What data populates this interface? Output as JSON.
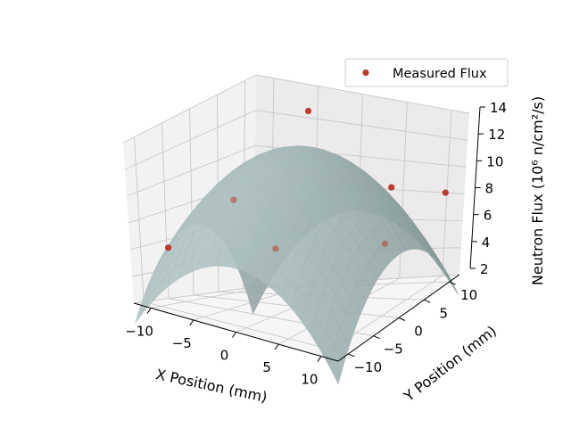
{
  "chart_data": {
    "type": "scatter",
    "title": "",
    "xlabel": "X Position (mm)",
    "ylabel": "Y Position (mm)",
    "zlabel": "Neutron Flux (10⁶ n/cm²/s)",
    "xlim": [
      -12,
      12
    ],
    "ylim": [
      -12,
      12
    ],
    "zlim": [
      2,
      14
    ],
    "x_ticks": [
      -10,
      -5,
      0,
      5,
      10
    ],
    "y_ticks": [
      -10,
      -5,
      0,
      5,
      10
    ],
    "z_ticks": [
      2,
      4,
      6,
      8,
      10,
      12,
      14
    ],
    "grid": true,
    "legend_position": "top-right",
    "surface": {
      "description_type": "fitted-paraboloid",
      "peak_value": 12.5,
      "value_at_corner": 0.5,
      "color": "#9fb2b2"
    },
    "series": [
      {
        "name": "Measured Flux",
        "color": "#c0392b",
        "points": [
          {
            "x": -10,
            "y": -8,
            "z": 6.0
          },
          {
            "x": -9,
            "y": 3,
            "z": 8.0
          },
          {
            "x": -3,
            "y": 7,
            "z": 13.5
          },
          {
            "x": 0,
            "y": -4,
            "z": 6.5
          },
          {
            "x": 6,
            "y": 8,
            "z": 9.0
          },
          {
            "x": 9,
            "y": 2,
            "z": 6.5
          },
          {
            "x": 11,
            "y": 10,
            "z": 8.5
          }
        ]
      }
    ]
  }
}
